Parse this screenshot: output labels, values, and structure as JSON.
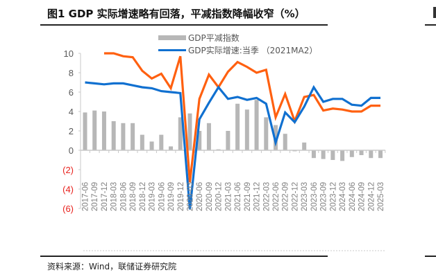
{
  "figure": {
    "title": "图1  GDP 实际增速略有回落，平减指数降幅收窄（%）",
    "source": "资料来源：Wind，联储证券研究院"
  },
  "colors": {
    "bar": "#b7b7b7",
    "blue_line": "#1070d0",
    "orange_line": "#ff6010",
    "negative_tick": "#e8201c",
    "axis": "#c8c8c8"
  },
  "legend": [
    {
      "label": "GDP平减指数",
      "type": "bar"
    },
    {
      "label": "GDP实际增速:当季 （2021MA2）",
      "type": "line"
    }
  ],
  "chart_data": {
    "type": "bar+line",
    "title": "图1  GDP 实际增速略有回落，平减指数降幅收窄（%）",
    "xlabel": "",
    "ylabel": "%",
    "ylim": [
      -6,
      10
    ],
    "yticks": [
      "10",
      "8",
      "6",
      "4",
      "2",
      "0",
      "(2)",
      "(4)",
      "(6)"
    ],
    "grid": false,
    "legend_position": "top-center",
    "categories": [
      "2017-06",
      "2017-09",
      "2017-12",
      "2018-03",
      "2018-06",
      "2018-09",
      "2018-12",
      "2019-03",
      "2019-06",
      "2019-09",
      "2019-12",
      "2020-03",
      "2020-06",
      "2020-09",
      "2020-12",
      "2021-03",
      "2021-06",
      "2021-09",
      "2021-12",
      "2022-03",
      "2022-06",
      "2022-09",
      "2022-12",
      "2023-03",
      "2023-06",
      "2023-09",
      "2023-12",
      "2024-03",
      "2024-06",
      "2024-09",
      "2024-12",
      "2025-03"
    ],
    "series": [
      {
        "name": "GDP平减指数",
        "type": "bar",
        "values": [
          3.9,
          4.1,
          4.0,
          3.0,
          2.8,
          2.8,
          1.6,
          0.9,
          1.6,
          0.4,
          3.4,
          3.8,
          2.0,
          2.8,
          0.1,
          2.0,
          4.8,
          4.2,
          5.2,
          3.4,
          2.6,
          1.7,
          -0.1,
          0.8,
          -0.8,
          -0.9,
          -1.0,
          -1.1,
          -0.7,
          -0.5,
          -0.8,
          -0.8
        ]
      },
      {
        "name": "GDP实际增速:当季 （2021MA2）",
        "type": "line",
        "values": [
          7.0,
          6.9,
          6.8,
          6.9,
          6.9,
          6.7,
          6.5,
          6.4,
          6.1,
          6.0,
          5.9,
          -6.1,
          3.2,
          4.9,
          6.5,
          5.3,
          5.5,
          5.2,
          5.4,
          4.8,
          0.8,
          3.9,
          2.9,
          4.5,
          6.5,
          5.0,
          5.3,
          5.3,
          4.7,
          4.6,
          5.4,
          5.4
        ]
      },
      {
        "name": "",
        "type": "line",
        "values": [
          null,
          null,
          10.3,
          10.0,
          9.7,
          9.6,
          8.2,
          7.4,
          7.9,
          6.4,
          9.7,
          -3.3,
          5.3,
          7.8,
          6.5,
          8.1,
          9.1,
          8.6,
          8.0,
          8.3,
          3.4,
          5.8,
          3.0,
          5.5,
          5.7,
          4.1,
          4.3,
          4.2,
          4.0,
          4.0,
          4.6,
          4.6
        ]
      }
    ]
  }
}
